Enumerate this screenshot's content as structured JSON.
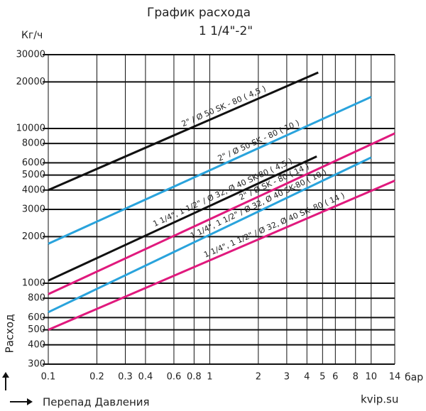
{
  "chart_data": {
    "type": "line",
    "title": "График расхода",
    "subtitle": "1 1/4\"-2\"",
    "y_unit": "Кг/ч",
    "x_unit": "бар",
    "y_label": "Расход",
    "x_label": "Перепад Давления",
    "watermark": "kvip.su",
    "log_x": true,
    "log_y": true,
    "grid": true,
    "xlim": [
      0.1,
      14
    ],
    "ylim": [
      300,
      30000
    ],
    "xticks": [
      0.1,
      0.2,
      0.3,
      0.4,
      0.6,
      0.8,
      1,
      2,
      3,
      4,
      5,
      6,
      8,
      10,
      14
    ],
    "yticks": [
      300,
      400,
      500,
      600,
      800,
      1000,
      2000,
      3000,
      4000,
      5000,
      6000,
      8000,
      10000,
      20000,
      30000
    ],
    "series": [
      {
        "name": "2\" / Ø 50 SK - 80 ( 4,5 )",
        "color": "#111111",
        "x": [
          0.1,
          4.7
        ],
        "values": [
          4000,
          23000
        ]
      },
      {
        "name": "2\" / Ø 50 SK - 80 ( 10 )",
        "color": "#29a3dc",
        "x": [
          0.1,
          10
        ],
        "values": [
          1800,
          16000
        ]
      },
      {
        "name": "1 1/4\", 1 1/2\" / Ø 32, Ø 40 SK-80 ( 4,5 )",
        "color": "#111111",
        "x": [
          0.1,
          4.6
        ],
        "values": [
          1040,
          6600
        ]
      },
      {
        "name": "2\" / Ø SK - 80 ( 14 )",
        "color": "#e0197d",
        "x": [
          0.1,
          14
        ],
        "values": [
          850,
          9300
        ]
      },
      {
        "name": "1 1/4\", 1 1/2\" / Ø 32, Ø 40 SK-80 ( 10 )",
        "color": "#29a3dc",
        "x": [
          0.1,
          10
        ],
        "values": [
          650,
          6500
        ]
      },
      {
        "name": "1 1/4\", 1 1/2\" / Ø 32, Ø 40 SK- 80 ( 14 )",
        "color": "#e0197d",
        "x": [
          0.1,
          14
        ],
        "values": [
          500,
          4600
        ]
      }
    ]
  }
}
